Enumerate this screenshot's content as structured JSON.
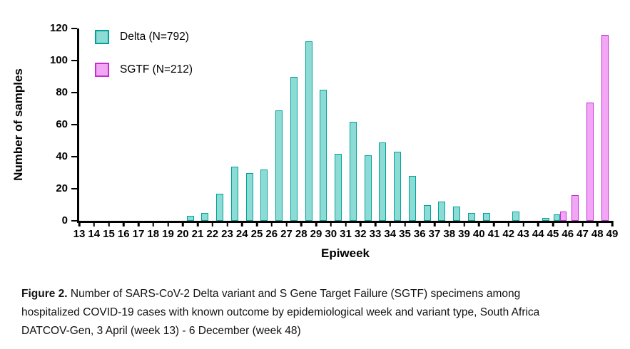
{
  "chart_data": {
    "type": "bar",
    "xlabel": "Epiweek",
    "ylabel": "Number of samples",
    "ylim": [
      0,
      120
    ],
    "yticks": [
      0,
      20,
      40,
      60,
      80,
      100,
      120
    ],
    "x_tick_labels": [
      "13",
      "14",
      "15",
      "16",
      "17",
      "18",
      "19",
      "20",
      "21",
      "22",
      "23",
      "24",
      "25",
      "26",
      "27",
      "28",
      "29",
      "30",
      "31",
      "32",
      "33",
      "34",
      "35",
      "36",
      "37",
      "38",
      "39",
      "40",
      "41",
      "42",
      "43",
      "44",
      "45",
      "46",
      "47",
      "48",
      "49"
    ],
    "categories": [
      "13",
      "14",
      "15",
      "16",
      "17",
      "18",
      "19",
      "20",
      "21",
      "22",
      "23",
      "24",
      "25",
      "26",
      "27",
      "28",
      "29",
      "30",
      "31",
      "32",
      "33",
      "34",
      "35",
      "36",
      "37",
      "38",
      "39",
      "40",
      "41",
      "42",
      "43",
      "44",
      "45",
      "46",
      "47",
      "48"
    ],
    "grid": false,
    "legend_position": "top-left",
    "series": [
      {
        "id": "delta",
        "name": "Delta (N=792)",
        "fill": "#8cdbd5",
        "stroke": "#00a39b",
        "values": [
          0,
          0,
          0,
          0,
          0,
          0,
          0,
          3,
          5,
          17,
          34,
          30,
          32,
          69,
          90,
          112,
          82,
          42,
          62,
          41,
          49,
          43,
          28,
          10,
          12,
          9,
          5,
          5,
          0,
          6,
          0,
          2,
          4,
          0,
          0,
          0
        ]
      },
      {
        "id": "sgtf",
        "name": "SGTF (N=212)",
        "fill": "#f3a6f6",
        "stroke": "#c22ed1",
        "values": [
          0,
          0,
          0,
          0,
          0,
          0,
          0,
          0,
          0,
          0,
          0,
          0,
          0,
          0,
          0,
          0,
          0,
          0,
          0,
          0,
          0,
          0,
          0,
          0,
          0,
          0,
          0,
          0,
          0,
          0,
          0,
          0,
          6,
          16,
          74,
          116
        ]
      }
    ]
  },
  "caption": {
    "label": "Figure 2.",
    "text": "Number of SARS-CoV-2 Delta variant and S Gene Target Failure (SGTF) specimens among hospitalized COVID-19 cases with known outcome by epidemiological week and variant type, South Africa DATCOV-Gen, 3 April (week 13) - 6 December (week 48)"
  }
}
